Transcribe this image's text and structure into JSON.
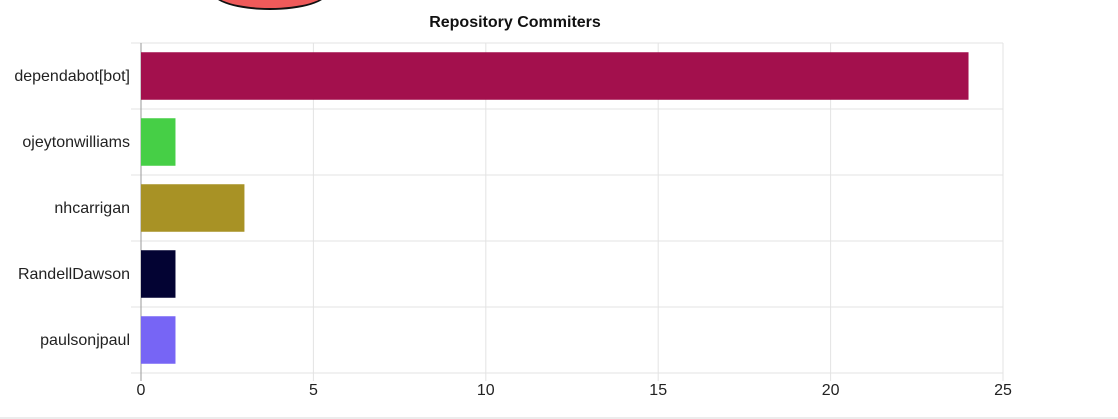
{
  "chart_data": {
    "type": "bar",
    "orientation": "horizontal",
    "title": "Repository Commiters",
    "xlabel": "",
    "ylabel": "",
    "xlim": [
      0,
      25
    ],
    "x_ticks": [
      "0",
      "5",
      "10",
      "15",
      "20",
      "25"
    ],
    "grid": true,
    "legend": "none",
    "categories": [
      "dependabot[bot]",
      "ojeytonwilliams",
      "nhcarrigan",
      "RandellDawson",
      "paulsonjpaul"
    ],
    "values": [
      24,
      1,
      3,
      1,
      1
    ],
    "colors": [
      "#a3104d",
      "#46cf46",
      "#a89225",
      "#030333",
      "#7765f5"
    ]
  }
}
